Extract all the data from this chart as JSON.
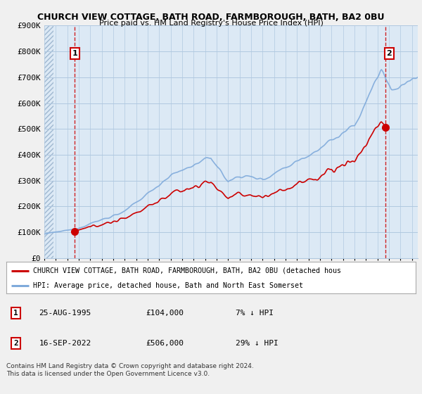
{
  "title1": "CHURCH VIEW COTTAGE, BATH ROAD, FARMBOROUGH, BATH, BA2 0BU",
  "title2": "Price paid vs. HM Land Registry's House Price Index (HPI)",
  "ylim": [
    0,
    900000
  ],
  "yticks": [
    0,
    100000,
    200000,
    300000,
    400000,
    500000,
    600000,
    700000,
    800000,
    900000
  ],
  "ytick_labels": [
    "£0",
    "£100K",
    "£200K",
    "£300K",
    "£400K",
    "£500K",
    "£600K",
    "£700K",
    "£800K",
    "£900K"
  ],
  "hpi_color": "#7faadb",
  "price_color": "#cc0000",
  "plot_bg_color": "#dce9f5",
  "hatch_bg_color": "#dce9f5",
  "sale1_year": 1995.65,
  "sale1_price": 104000,
  "sale2_year": 2022.71,
  "sale2_price": 506000,
  "legend_line1": "CHURCH VIEW COTTAGE, BATH ROAD, FARMBOROUGH, BATH, BA2 0BU (detached hous",
  "legend_line2": "HPI: Average price, detached house, Bath and North East Somerset",
  "table_row1": [
    "1",
    "25-AUG-1995",
    "£104,000",
    "7% ↓ HPI"
  ],
  "table_row2": [
    "2",
    "16-SEP-2022",
    "£506,000",
    "29% ↓ HPI"
  ],
  "footnote": "Contains HM Land Registry data © Crown copyright and database right 2024.\nThis data is licensed under the Open Government Licence v3.0.",
  "bg_color": "#f0f0f0",
  "grid_color": "#b0c8e0",
  "xmin": 1993,
  "xmax": 2025.5
}
